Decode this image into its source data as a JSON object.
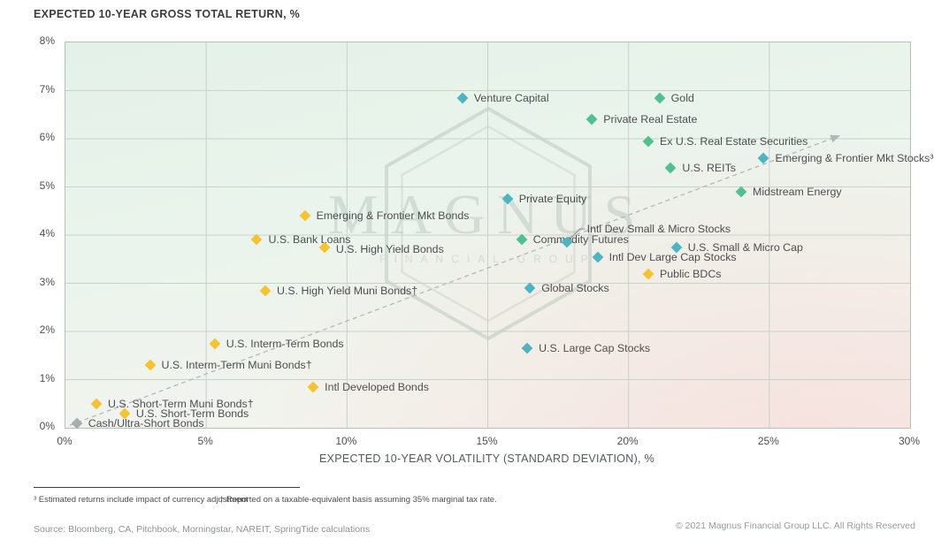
{
  "page": {
    "title": "EXPECTED 10-YEAR GROSS TOTAL RETURN, %",
    "x_axis_title": "EXPECTED 10-YEAR VOLATILITY (STANDARD DEVIATION), %",
    "footnote_1": "³ Estimated returns include impact of currency adjustment",
    "footnote_2": "† Reported on a taxable-equivalent basis assuming 35% marginal tax rate.",
    "source": "Source: Bloomberg, CA, Pitchbook, Morningstar, NAREIT, SpringTide calculations",
    "copyright": "© 2021 Magnus Financial Group LLC. All Rights Reserved",
    "watermark": "MAGNUS",
    "watermark_sub": "FINANCIAL GROUP"
  },
  "chart_data": {
    "type": "scatter",
    "title": "EXPECTED 10-YEAR GROSS TOTAL RETURN, %",
    "xlabel": "EXPECTED 10-YEAR VOLATILITY (STANDARD DEVIATION), %",
    "ylabel": "EXPECTED 10-YEAR GROSS TOTAL RETURN, %",
    "xlim": [
      0,
      30
    ],
    "ylim": [
      0,
      8
    ],
    "grid": true,
    "x_ticks": [
      {
        "value": 0,
        "label": "0%"
      },
      {
        "value": 5,
        "label": "5%"
      },
      {
        "value": 10,
        "label": "10%"
      },
      {
        "value": 15,
        "label": "15%"
      },
      {
        "value": 20,
        "label": "20%"
      },
      {
        "value": 25,
        "label": "25%"
      },
      {
        "value": 30,
        "label": "30%"
      }
    ],
    "y_ticks": [
      {
        "value": 0,
        "label": "0%"
      },
      {
        "value": 1,
        "label": "1%"
      },
      {
        "value": 2,
        "label": "2%"
      },
      {
        "value": 3,
        "label": "3%"
      },
      {
        "value": 4,
        "label": "4%"
      },
      {
        "value": 5,
        "label": "5%"
      },
      {
        "value": 6,
        "label": "6%"
      },
      {
        "value": 7,
        "label": "7%"
      },
      {
        "value": 8,
        "label": "8%"
      }
    ],
    "colors": {
      "equity": "#4fb4c2",
      "real_assets": "#52c08e",
      "fixed_income": "#f4c233",
      "cash": "#a9adb0",
      "trend": "#b3b7b9",
      "gridline": "#c5d3ca"
    },
    "trend_arrow": {
      "x1": 0.15,
      "y1": 0.05,
      "x2": 27.2,
      "y2": 6.0,
      "style": "dashed"
    },
    "points": [
      {
        "label": "Venture Capital",
        "x": 14.1,
        "y": 6.85,
        "group": "equity"
      },
      {
        "label": "Gold",
        "x": 21.1,
        "y": 6.85,
        "group": "real_assets"
      },
      {
        "label": "Private Real Estate",
        "x": 18.7,
        "y": 6.4,
        "group": "real_assets"
      },
      {
        "label": "Ex U.S. Real Estate Securities",
        "x": 20.7,
        "y": 5.95,
        "group": "real_assets"
      },
      {
        "label": "Emerging & Frontier Mkt Stocks³",
        "x": 24.8,
        "y": 5.6,
        "group": "equity"
      },
      {
        "label": "U.S. REITs",
        "x": 21.5,
        "y": 5.4,
        "group": "real_assets"
      },
      {
        "label": "Midstream Energy",
        "x": 24.0,
        "y": 4.9,
        "group": "real_assets"
      },
      {
        "label": "Private Equity",
        "x": 15.7,
        "y": 4.75,
        "group": "equity"
      },
      {
        "label": "Emerging & Frontier Mkt Bonds",
        "x": 8.5,
        "y": 4.4,
        "group": "fixed_income"
      },
      {
        "label": "Commodity Futures",
        "x": 16.2,
        "y": 3.9,
        "group": "real_assets"
      },
      {
        "label": "U.S. Bank Loans",
        "x": 6.8,
        "y": 3.9,
        "group": "fixed_income"
      },
      {
        "label": "Intl Dev Small & Micro Stocks",
        "x": 17.8,
        "y": 3.85,
        "group": "equity",
        "callout": true,
        "label_dx": 23,
        "label_dy": -15
      },
      {
        "label": "U.S. High Yield Bonds",
        "x": 9.2,
        "y": 3.75,
        "group": "fixed_income",
        "label_dy": 2
      },
      {
        "label": "U.S. Small & Micro Cap",
        "x": 21.7,
        "y": 3.75,
        "group": "equity"
      },
      {
        "label": "Intl Dev Large Cap Stocks",
        "x": 18.9,
        "y": 3.55,
        "group": "equity"
      },
      {
        "label": "Public BDCs",
        "x": 20.7,
        "y": 3.2,
        "group": "fixed_income"
      },
      {
        "label": "Global Stocks",
        "x": 16.5,
        "y": 2.9,
        "group": "equity"
      },
      {
        "label": "U.S. High Yield Muni Bonds†",
        "x": 7.1,
        "y": 2.85,
        "group": "fixed_income"
      },
      {
        "label": "U.S. Interm-Term Bonds",
        "x": 5.3,
        "y": 1.75,
        "group": "fixed_income"
      },
      {
        "label": "U.S. Large Cap Stocks",
        "x": 16.4,
        "y": 1.65,
        "group": "equity"
      },
      {
        "label": "U.S. Interm-Term Muni Bonds†",
        "x": 3.0,
        "y": 1.3,
        "group": "fixed_income"
      },
      {
        "label": "Intl Developed Bonds",
        "x": 8.8,
        "y": 0.85,
        "group": "fixed_income"
      },
      {
        "label": "U.S. Short-Term Muni Bonds†",
        "x": 1.1,
        "y": 0.5,
        "group": "fixed_income"
      },
      {
        "label": "U.S. Short-Term Bonds",
        "x": 2.1,
        "y": 0.3,
        "group": "fixed_income"
      },
      {
        "label": "Cash/Ultra-Short Bonds",
        "x": 0.4,
        "y": 0.1,
        "group": "cash"
      }
    ]
  }
}
